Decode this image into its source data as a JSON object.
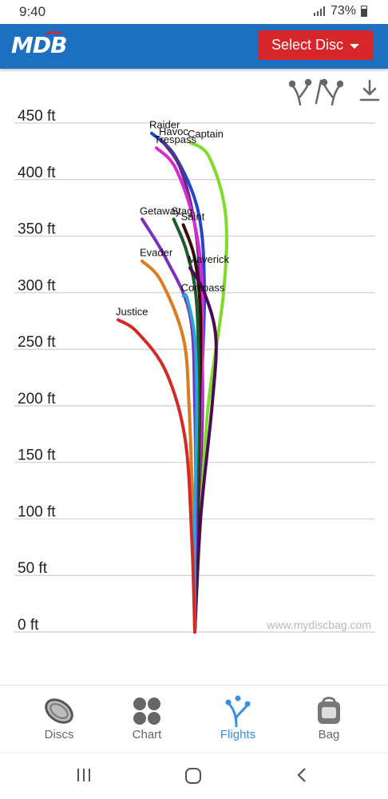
{
  "status_bar": {
    "time": "9:40",
    "battery": "73%"
  },
  "header": {
    "logo": "MDB",
    "select_button": "Select Disc"
  },
  "toolbar": {
    "flight_toggle_icon": "flight-direction-toggle-icon",
    "download_icon": "download-icon"
  },
  "chart_data": {
    "type": "line",
    "ylabel": "",
    "y_unit": "ft",
    "ylim": [
      0,
      450
    ],
    "y_ticks": [
      "0 ft",
      "50 ft",
      "100 ft",
      "150 ft",
      "200 ft",
      "250 ft",
      "300 ft",
      "350 ft",
      "400 ft",
      "450 ft"
    ],
    "watermark": "www.mydiscbag.com",
    "series": [
      {
        "name": "Raider",
        "color": "#2447c9",
        "points": [
          [
            0,
            0
          ],
          [
            2,
            100
          ],
          [
            6,
            200
          ],
          [
            10,
            300
          ],
          [
            4,
            370
          ],
          [
            -20,
            420
          ],
          [
            -45,
            441
          ]
        ]
      },
      {
        "name": "Havoc",
        "color": "#5a2f8a",
        "points": [
          [
            0,
            0
          ],
          [
            4,
            100
          ],
          [
            8,
            200
          ],
          [
            6,
            300
          ],
          [
            0,
            360
          ],
          [
            -15,
            410
          ],
          [
            -35,
            435
          ]
        ]
      },
      {
        "name": "Trespass",
        "color": "#d92ad0",
        "points": [
          [
            0,
            0
          ],
          [
            3,
            100
          ],
          [
            7,
            200
          ],
          [
            8,
            300
          ],
          [
            0,
            360
          ],
          [
            -20,
            410
          ],
          [
            -40,
            428
          ]
        ]
      },
      {
        "name": "Captain",
        "color": "#7fdb2b",
        "points": [
          [
            0,
            0
          ],
          [
            6,
            100
          ],
          [
            14,
            200
          ],
          [
            30,
            300
          ],
          [
            32,
            370
          ],
          [
            15,
            420
          ],
          [
            -5,
            433
          ]
        ]
      },
      {
        "name": "Saint",
        "color": "#3b0a0a",
        "points": [
          [
            0,
            0
          ],
          [
            3,
            100
          ],
          [
            5,
            200
          ],
          [
            6,
            280
          ],
          [
            0,
            330
          ],
          [
            -12,
            360
          ]
        ]
      },
      {
        "name": "Stag",
        "color": "#1a5c2a",
        "points": [
          [
            0,
            0
          ],
          [
            2,
            100
          ],
          [
            4,
            200
          ],
          [
            2,
            290
          ],
          [
            -8,
            335
          ],
          [
            -22,
            365
          ]
        ]
      },
      {
        "name": "Getaway",
        "color": "#7a2fc0",
        "points": [
          [
            0,
            0
          ],
          [
            1,
            100
          ],
          [
            0,
            200
          ],
          [
            -5,
            280
          ],
          [
            -30,
            330
          ],
          [
            -55,
            365
          ]
        ]
      },
      {
        "name": "Maverick",
        "color": "#4a0a55",
        "points": [
          [
            0,
            0
          ],
          [
            6,
            100
          ],
          [
            18,
            200
          ],
          [
            22,
            260
          ],
          [
            10,
            300
          ],
          [
            -5,
            322
          ]
        ]
      },
      {
        "name": "Evader",
        "color": "#e07a1f",
        "points": [
          [
            0,
            0
          ],
          [
            -2,
            100
          ],
          [
            -6,
            200
          ],
          [
            -12,
            260
          ],
          [
            -35,
            310
          ],
          [
            -55,
            328
          ]
        ]
      },
      {
        "name": "Compass",
        "color": "#2aa6d6",
        "points": [
          [
            0,
            0
          ],
          [
            0,
            100
          ],
          [
            2,
            200
          ],
          [
            0,
            260
          ],
          [
            -8,
            295
          ],
          [
            -12,
            297
          ]
        ]
      },
      {
        "name": "Justice",
        "color": "#d42a24",
        "points": [
          [
            0,
            0
          ],
          [
            -3,
            80
          ],
          [
            -10,
            170
          ],
          [
            -30,
            230
          ],
          [
            -60,
            265
          ],
          [
            -80,
            276
          ]
        ]
      }
    ]
  },
  "bottom_nav": {
    "items": [
      {
        "label": "Discs",
        "icon": "disc-icon"
      },
      {
        "label": "Chart",
        "icon": "chart-grid-icon"
      },
      {
        "label": "Flights",
        "icon": "flights-icon"
      },
      {
        "label": "Bag",
        "icon": "bag-icon"
      }
    ],
    "active": "Flights"
  },
  "system_nav": {
    "recent": "recent-apps-icon",
    "home": "home-icon",
    "back": "back-icon"
  }
}
